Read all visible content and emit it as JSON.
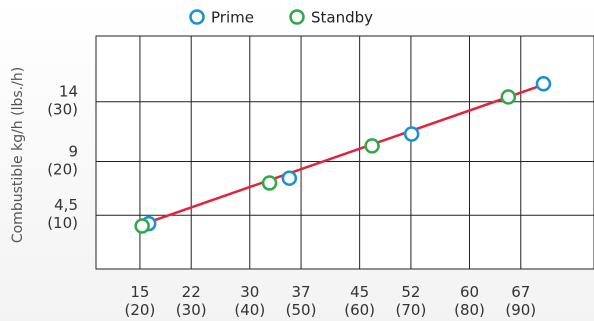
{
  "chart_data": {
    "type": "line",
    "title": "",
    "xlabel": "",
    "ylabel": "Combustible kg/h (lbs./h)",
    "legend": {
      "placement": "top"
    },
    "grid": true,
    "xlim": [
      9,
      77
    ],
    "ylim": [
      0,
      19.5
    ],
    "x_ticks": [
      {
        "value": 15,
        "label": "15",
        "sub": "(20)"
      },
      {
        "value": 22,
        "label": "22",
        "sub": "(30)"
      },
      {
        "value": 30,
        "label": "30",
        "sub": "(40)"
      },
      {
        "value": 37,
        "label": "37",
        "sub": "(50)"
      },
      {
        "value": 45,
        "label": "45",
        "sub": "(60)"
      },
      {
        "value": 52,
        "label": "52",
        "sub": "(70)"
      },
      {
        "value": 60,
        "label": "60",
        "sub": "(80)"
      },
      {
        "value": 67,
        "label": "67",
        "sub": "(90)"
      }
    ],
    "y_ticks": [
      {
        "value": 4.5,
        "label": "4,5",
        "sub": "(10)"
      },
      {
        "value": 9,
        "label": "9",
        "sub": "(20)"
      },
      {
        "value": 14,
        "label": "14",
        "sub": "(30)"
      }
    ],
    "line": {
      "color": "#e2233a",
      "points": [
        [
          15.2,
          3.7
        ],
        [
          70,
          15.4
        ]
      ]
    },
    "series": [
      {
        "name": "Prime",
        "color": "#1a8fd6",
        "x": [
          16.2,
          35.4,
          52.1,
          70.1
        ],
        "y": [
          3.8,
          7.6,
          11.3,
          15.5
        ]
      },
      {
        "name": "Standby",
        "color": "#2fa84a",
        "x": [
          15.3,
          32.7,
          46.7,
          65.3
        ],
        "y": [
          3.6,
          7.2,
          10.3,
          14.4
        ]
      }
    ]
  }
}
